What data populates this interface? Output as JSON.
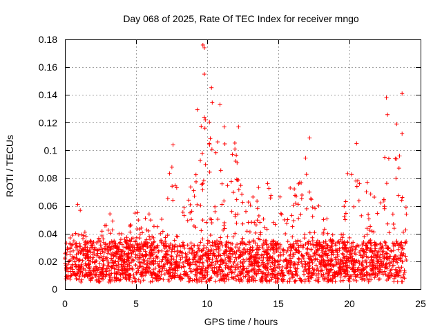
{
  "chart_data": {
    "type": "scatter",
    "title": "Day 068 of 2025, Rate Of TEC Index for receiver mngo",
    "xlabel": "GPS time / hours",
    "ylabel": "ROTI / TECUs",
    "xlim": [
      0,
      25
    ],
    "ylim": [
      0,
      0.18
    ],
    "x_ticks": [
      "0",
      "5",
      "10",
      "15",
      "20",
      "25"
    ],
    "y_ticks": [
      "0",
      "0.02",
      "0.04",
      "0.06",
      "0.08",
      "0.1",
      "0.12",
      "0.14",
      "0.16",
      "0.18"
    ],
    "x_tick_values": [
      0,
      5,
      10,
      15,
      20,
      25
    ],
    "y_tick_values": [
      0,
      0.02,
      0.04,
      0.06,
      0.08,
      0.1,
      0.12,
      0.14,
      0.16,
      0.18
    ],
    "grid": true,
    "marker": "+",
    "series_color": "#ff0000",
    "approx_points": 2600,
    "data_range_x": [
      0,
      24
    ],
    "dense_band_y": [
      0.005,
      0.035
    ],
    "envelope": {
      "hours": [
        0,
        0.5,
        1,
        1.5,
        2,
        2.5,
        3,
        3.5,
        4,
        4.5,
        5,
        5.5,
        6,
        6.5,
        7,
        7.5,
        8,
        8.5,
        9,
        9.5,
        10,
        10.5,
        11,
        11.5,
        12,
        12.5,
        13,
        13.5,
        14,
        14.5,
        15,
        15.5,
        16,
        16.5,
        17,
        17.5,
        18,
        18.5,
        19,
        19.5,
        20,
        20.5,
        21,
        21.5,
        22,
        22.5,
        23,
        23.5,
        24
      ],
      "upper": [
        0.035,
        0.045,
        0.06,
        0.04,
        0.035,
        0.04,
        0.058,
        0.05,
        0.04,
        0.045,
        0.057,
        0.055,
        0.057,
        0.05,
        0.06,
        0.104,
        0.07,
        0.08,
        0.09,
        0.16,
        0.176,
        0.13,
        0.133,
        0.1,
        0.117,
        0.07,
        0.08,
        0.075,
        0.093,
        0.07,
        0.08,
        0.065,
        0.093,
        0.1,
        0.109,
        0.07,
        0.06,
        0.055,
        0.05,
        0.05,
        0.1,
        0.105,
        0.085,
        0.07,
        0.07,
        0.138,
        0.12,
        0.141,
        0.06
      ]
    },
    "notable_points": [
      {
        "x": 9.7,
        "y": 0.176
      },
      {
        "x": 9.8,
        "y": 0.174
      },
      {
        "x": 9.8,
        "y": 0.155
      },
      {
        "x": 10.9,
        "y": 0.133
      },
      {
        "x": 11.2,
        "y": 0.117
      },
      {
        "x": 12.2,
        "y": 0.117
      },
      {
        "x": 17.2,
        "y": 0.109
      },
      {
        "x": 20.5,
        "y": 0.105
      },
      {
        "x": 7.6,
        "y": 0.104
      },
      {
        "x": 22.6,
        "y": 0.138
      },
      {
        "x": 23.7,
        "y": 0.141
      },
      {
        "x": 23.7,
        "y": 0.112
      },
      {
        "x": 0.9,
        "y": 0.061
      }
    ]
  }
}
